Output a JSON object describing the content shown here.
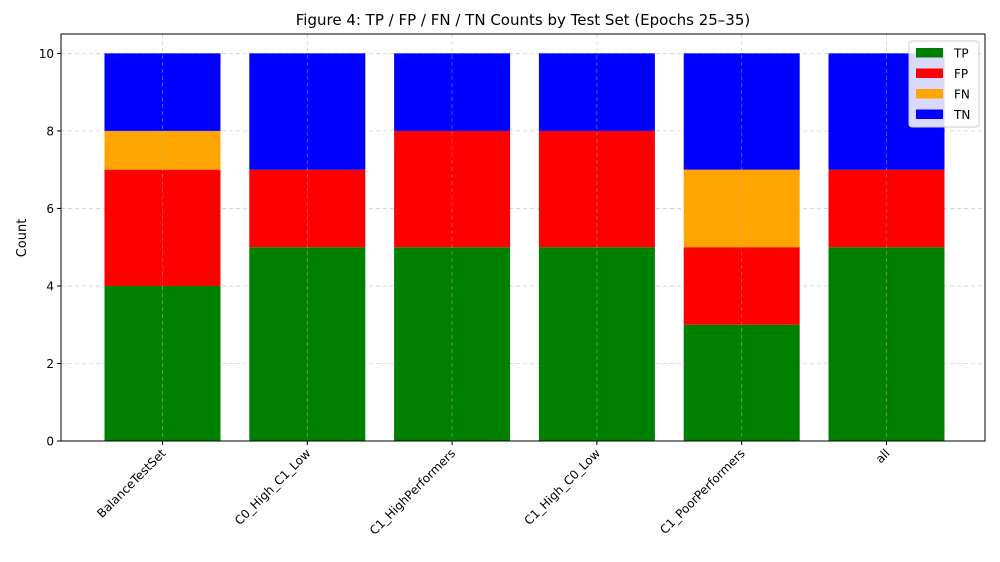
{
  "chart_data": {
    "type": "bar",
    "stacked": true,
    "title": "Figure 4: TP / FP / FN / TN Counts by Test Set (Epochs 25–35)",
    "xlabel": "",
    "ylabel": "Count",
    "ylim": [
      0,
      10.5
    ],
    "yticks": [
      0,
      2,
      4,
      6,
      8,
      10
    ],
    "grid": true,
    "legend_position": "top-right",
    "categories": [
      "BalanceTestSet",
      "C0_High_C1_Low",
      "C1_HighPerformers",
      "C1_High_C0_Low",
      "C1_PoorPerformers",
      "all"
    ],
    "series": [
      {
        "name": "TP",
        "color": "#008000",
        "values": [
          4,
          5,
          5,
          5,
          3,
          5
        ]
      },
      {
        "name": "FP",
        "color": "#ff0000",
        "values": [
          3,
          2,
          3,
          3,
          2,
          2
        ]
      },
      {
        "name": "FN",
        "color": "#ffa500",
        "values": [
          1,
          0,
          0,
          0,
          2,
          0
        ]
      },
      {
        "name": "TN",
        "color": "#0000ff",
        "values": [
          2,
          3,
          2,
          2,
          3,
          3
        ]
      }
    ]
  }
}
